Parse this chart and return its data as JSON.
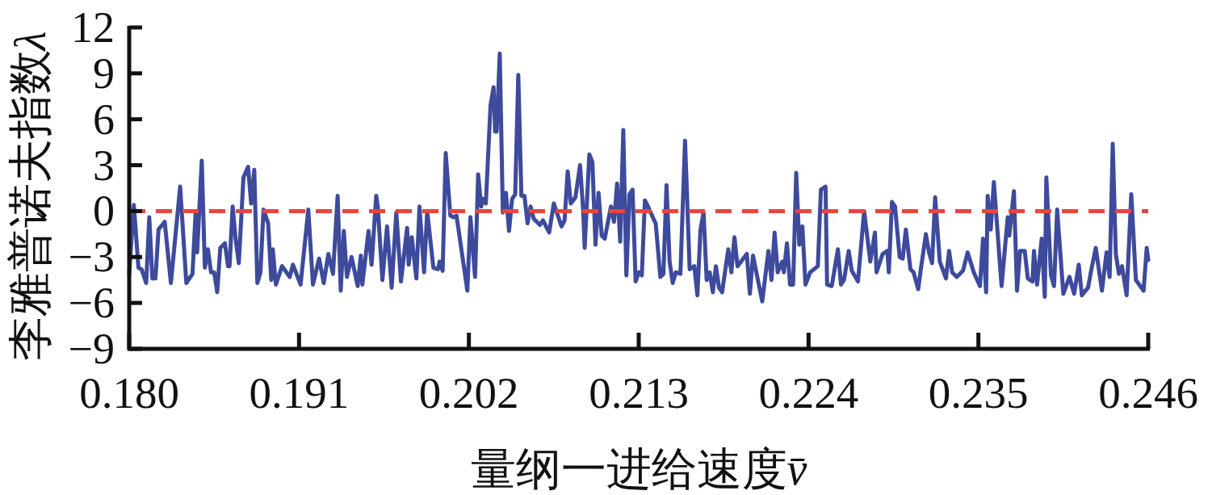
{
  "chart_data": {
    "type": "line",
    "xlabel": "量纲一进给速度v̄",
    "ylabel": "李雅普诺夫指数λ",
    "xlim": [
      0.18,
      0.246
    ],
    "xticks": [
      {
        "value": 0.18,
        "label": "0.180"
      },
      0.191,
      0.202,
      0.213,
      0.224,
      0.235,
      0.246
    ],
    "ylim": [
      -9,
      12
    ],
    "yticks": [
      {
        "value": -9,
        "label": "−9"
      },
      {
        "value": -6,
        "label": "−6"
      },
      {
        "value": -3,
        "label": "−3"
      },
      0,
      3,
      6,
      9,
      12
    ],
    "line_style": "solid",
    "ref_lines": [
      {
        "axis": "y",
        "value": 0,
        "color": "#e8453f",
        "line_style": "dashed"
      }
    ],
    "x": [
      0.18,
      0.1803,
      0.1806,
      0.1808,
      0.1811,
      0.1813,
      0.1815,
      0.1817,
      0.1819,
      0.1823,
      0.1827,
      0.1833,
      0.1837,
      0.1841,
      0.1843,
      0.1844,
      0.1847,
      0.1849,
      0.1851,
      0.1853,
      0.1855,
      0.1857,
      0.1859,
      0.1862,
      0.1864,
      0.1865,
      0.1867,
      0.1869,
      0.1871,
      0.1874,
      0.1877,
      0.1879,
      0.1881,
      0.1883,
      0.1885,
      0.1887,
      0.189,
      0.1892,
      0.1893,
      0.1895,
      0.1899,
      0.1904,
      0.1906,
      0.1911,
      0.1916,
      0.1919,
      0.1923,
      0.1926,
      0.1929,
      0.1932,
      0.1935,
      0.1937,
      0.1939,
      0.1941,
      0.1944,
      0.1948,
      0.195,
      0.1951,
      0.1955,
      0.1957,
      0.196,
      0.1961,
      0.1964,
      0.1967,
      0.197,
      0.1973,
      0.1976,
      0.198,
      0.1981,
      0.1983,
      0.1986,
      0.1988,
      0.1991,
      0.1993,
      0.1997,
      0.2,
      0.2001,
      0.2003,
      0.2005,
      0.2008,
      0.201,
      0.2012,
      0.2019,
      0.2021,
      0.2024,
      0.2026,
      0.2028,
      0.2029,
      0.2031,
      0.2034,
      0.2036,
      0.2037,
      0.2038,
      0.204,
      0.2042,
      0.2044,
      0.2046,
      0.2048,
      0.205,
      0.2052,
      0.2054,
      0.2056,
      0.2058,
      0.206,
      0.2062,
      0.2066,
      0.2068,
      0.2072,
      0.2075,
      0.208,
      0.2082,
      0.2084,
      0.2086,
      0.2089,
      0.2092,
      0.2094,
      0.2095,
      0.2098,
      0.21,
      0.2102,
      0.2104,
      0.2106,
      0.2108,
      0.2112,
      0.2114,
      0.2116,
      0.2118,
      0.212,
      0.2122,
      0.2124,
      0.2126,
      0.2128,
      0.213,
      0.2132,
      0.2134,
      0.2136,
      0.214,
      0.2141,
      0.2144,
      0.2146,
      0.2148,
      0.215,
      0.2152,
      0.2154,
      0.2157,
      0.216,
      0.2163,
      0.2166,
      0.2168,
      0.217,
      0.2172,
      0.2174,
      0.2176,
      0.2178,
      0.218,
      0.2182,
      0.2184,
      0.2188,
      0.219,
      0.2192,
      0.2194,
      0.22,
      0.2202,
      0.2204,
      0.221,
      0.2214,
      0.2216,
      0.2218,
      0.222,
      0.2223,
      0.2224,
      0.2226,
      0.2228,
      0.223,
      0.2232,
      0.2234,
      0.2236,
      0.2238,
      0.2241,
      0.2246,
      0.2248,
      0.2251,
      0.2252,
      0.2255,
      0.2259,
      0.2261,
      0.2263,
      0.2266,
      0.2268,
      0.2272,
      0.2276,
      0.228,
      0.2283,
      0.2284,
      0.2288,
      0.2291,
      0.2292,
      0.2294,
      0.2296,
      0.2299,
      0.2301,
      0.2303,
      0.2306,
      0.2308,
      0.2311,
      0.2313,
      0.2316,
      0.2318,
      0.232,
      0.2322,
      0.2325,
      0.2329,
      0.2331,
      0.2333,
      0.2336,
      0.234,
      0.2343,
      0.2347,
      0.2351,
      0.2353,
      0.2355,
      0.2356,
      0.2358,
      0.236,
      0.2365,
      0.2369,
      0.237,
      0.2373,
      0.2375,
      0.2377,
      0.238,
      0.2382,
      0.2385,
      0.2386,
      0.2388,
      0.2391,
      0.2393,
      0.2394,
      0.2397,
      0.2399,
      0.2401,
      0.2405,
      0.2409,
      0.2412,
      0.2415,
      0.2417,
      0.2421,
      0.2423,
      0.2426,
      0.243,
      0.2433,
      0.2435,
      0.2437,
      0.2439,
      0.2441,
      0.2443,
      0.2446,
      0.2449,
      0.2452,
      0.2457,
      0.2459,
      0.246
    ],
    "series": [
      {
        "color": "#3e4a9c",
        "values": [
          -4.1,
          0.4,
          -3.7,
          -3.8,
          -4.7,
          -0.4,
          -4.4,
          -4.4,
          -1.2,
          -0.7,
          -4.7,
          1.6,
          -4.7,
          -4.1,
          -0.1,
          -2.7,
          3.3,
          -3.7,
          -2.5,
          -4.0,
          -4.0,
          -5.3,
          -2.4,
          -2.1,
          -3.6,
          -3.6,
          0.3,
          -1.9,
          -3.4,
          2.2,
          2.9,
          0.5,
          2.7,
          -4.7,
          -4.0,
          0.1,
          -0.8,
          -4.5,
          -2.5,
          -4.8,
          -3.6,
          -4.3,
          -3.5,
          -4.8,
          0.1,
          -4.8,
          -3.1,
          -4.7,
          -2.8,
          -4.1,
          1.0,
          -5.2,
          -1.3,
          -4.3,
          -3.0,
          -4.9,
          -2.9,
          -4.8,
          -1.3,
          -3.5,
          1.0,
          0.3,
          -4.5,
          -1.0,
          -5.0,
          -0.1,
          -4.6,
          -1.1,
          -3.5,
          -1.7,
          -4.4,
          0.3,
          -4.0,
          0.0,
          -3.7,
          -3.8,
          -3.3,
          -3.9,
          3.8,
          -0.3,
          -0.4,
          -0.3,
          -5.2,
          -0.4,
          -4.3,
          2.4,
          0.3,
          0.8,
          0.5,
          6.9,
          8.1,
          5.2,
          5.2,
          10.3,
          -0.1,
          1.2,
          -1.3,
          0.8,
          1.1,
          8.9,
          1.0,
          1.0,
          -0.8,
          0.3,
          -0.5,
          -0.9,
          -0.6,
          -1.4,
          0.5,
          -1.0,
          -0.6,
          2.6,
          0.5,
          0.9,
          3.0,
          0.1,
          -2.4,
          3.7,
          3.2,
          -2.2,
          1.2,
          -1.6,
          -1.8,
          0.3,
          -0.7,
          1.8,
          -2.0,
          5.3,
          -4.2,
          1.1,
          1.4,
          -4.6,
          -4.0,
          -4.2,
          0.7,
          0.3,
          -0.6,
          -0.8,
          -4.3,
          -4.1,
          1.7,
          -3.3,
          -4.7,
          -4.0,
          -4.1,
          4.6,
          -3.8,
          -3.6,
          -5.5,
          -1.2,
          -0.1,
          -4.5,
          -4.0,
          -5.3,
          -3.6,
          -5.0,
          -5.3,
          -2.5,
          -4.0,
          -1.7,
          -3.6,
          -2.8,
          -5.4,
          -2.9,
          -5.9,
          -2.6,
          -4.5,
          -1.4,
          -4.0,
          -3.3,
          -4.0,
          -2.1,
          -4.8,
          -4.8,
          2.5,
          -2.2,
          -1.0,
          -4.8,
          -4.0,
          -3.6,
          1.4,
          1.6,
          -4.8,
          -4.9,
          -2.5,
          -4.8,
          -4.5,
          -2.6,
          -3.9,
          -4.6,
          0.0,
          -3.3,
          -1.4,
          -4.0,
          -2.8,
          -2.6,
          -4.0,
          0.6,
          0.3,
          -3.0,
          -3.1,
          -1.2,
          -3.8,
          -4.0,
          -5.1,
          -3.6,
          -1.5,
          -2.7,
          -3.4,
          0.9,
          -3.3,
          -4.4,
          -2.6,
          -4.0,
          -4.3,
          -3.9,
          -2.7,
          -4.0,
          -4.9,
          -1.8,
          -5.3,
          1.0,
          -1.2,
          1.9,
          -4.9,
          -0.4,
          -1.6,
          1.3,
          -5.2,
          -2.6,
          -2.6,
          -4.4,
          -4.6,
          -2.6,
          -4.8,
          -1.8,
          -5.6,
          2.2,
          -4.2,
          -4.9,
          0.1,
          -5.4,
          -4.3,
          -5.4,
          -3.5,
          -5.5,
          -5.0,
          -3.9,
          -2.4,
          -5.2,
          -2.7,
          -4.3,
          4.4,
          -2.8,
          -4.1,
          -3.6,
          -5.5,
          1.1,
          -4.5,
          -5.2,
          -2.4,
          -3.2
        ]
      }
    ]
  }
}
